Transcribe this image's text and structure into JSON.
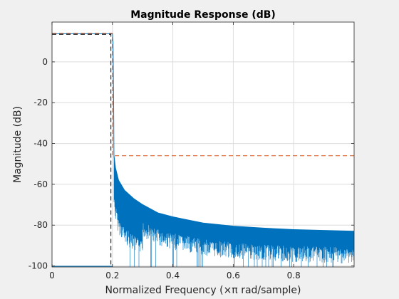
{
  "chart_data": {
    "type": "line",
    "title": "Magnitude Response (dB)",
    "xlabel": "Normalized Frequency (×π rad/sample)",
    "ylabel": "Magnitude (dB)",
    "xlim": [
      0,
      1
    ],
    "ylim": [
      -100.5,
      19.5
    ],
    "grid": true,
    "x_ticks": [
      0,
      0.2,
      0.4,
      0.6,
      0.8
    ],
    "x_tick_labels": [
      "0",
      "0.2",
      "0.4",
      "0.6",
      "0.8"
    ],
    "y_ticks": [
      0,
      -20,
      -40,
      -60,
      -80,
      -100
    ],
    "y_tick_labels": [
      "0",
      "-20",
      "-40",
      "-60",
      "-80",
      "-100"
    ],
    "colors": {
      "response": "#0072bd",
      "mask_upper": "#d95319",
      "mask_lower": "#000000",
      "grid": "#dcdcdc"
    },
    "series": [
      {
        "kind": "response",
        "passband_edge": 0.2,
        "passband_level_db": 13.8,
        "stopband_start": 0.205,
        "stopband_envelope_x": [
          0.205,
          0.21,
          0.22,
          0.24,
          0.27,
          0.3,
          0.35,
          0.4,
          0.5,
          0.6,
          0.7,
          0.8,
          0.9,
          1.0
        ],
        "stopband_envelope_db": [
          -46,
          -52,
          -58,
          -63,
          -67,
          -70,
          -74,
          -76,
          -79,
          -80.5,
          -81.5,
          -82.2,
          -82.6,
          -83
        ],
        "floor_db": -100.5
      },
      {
        "kind": "mask_upper",
        "x": [
          0,
          0.2,
          0.2,
          0.2,
          1.0
        ],
        "y": [
          14,
          14,
          4.5,
          -46,
          -46
        ]
      },
      {
        "kind": "mask_lower",
        "x": [
          0,
          0.195,
          0.195
        ],
        "y": [
          13.5,
          13.5,
          -100
        ]
      }
    ]
  }
}
